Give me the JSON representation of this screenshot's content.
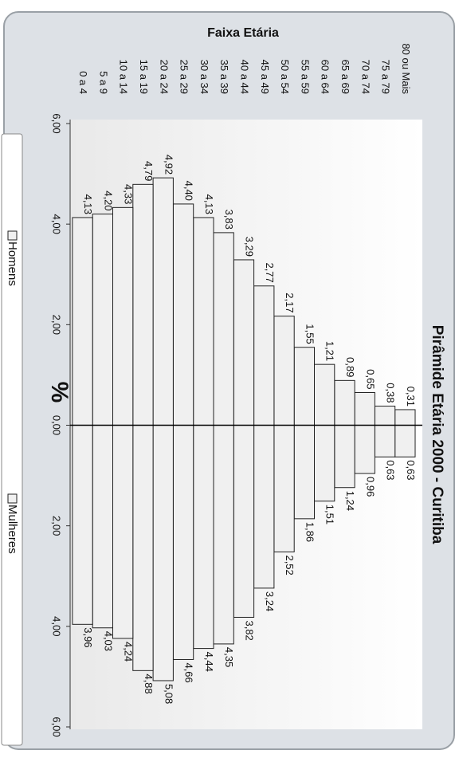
{
  "chart_data": {
    "type": "bar",
    "title": "Pirâmide Etária 2000 - Curitiba",
    "x_label": "%",
    "y_label": "Faixa Etária",
    "categories": [
      "80 ou Mais",
      "75 a 79",
      "70 a 74",
      "65 a 69",
      "60 a 64",
      "55 a 59",
      "50 a 54",
      "45 a 49",
      "40 a 44",
      "35 a 39",
      "30 a 34",
      "25 a 29",
      "20 a 24",
      "15 a 19",
      "10 a 14",
      "5 a 9",
      "0 a 4"
    ],
    "series": [
      {
        "name": "Homens",
        "color": "#f0f0f0",
        "values": [
          0.31,
          0.38,
          0.65,
          0.89,
          1.21,
          1.55,
          2.17,
          2.77,
          3.29,
          3.83,
          4.13,
          4.4,
          4.92,
          4.79,
          4.33,
          4.2,
          4.13
        ],
        "value_labels": [
          "0,31",
          "0,38",
          "0,65",
          "0,89",
          "1,21",
          "1,55",
          "2,17",
          "2,77",
          "3,29",
          "3,83",
          "4,13",
          "4,40",
          "4,92",
          "4,79",
          "4,33",
          "4,20",
          "4,13"
        ]
      },
      {
        "name": "Mulheres",
        "color": "#f0f0f0",
        "values": [
          0.63,
          0.63,
          0.96,
          1.24,
          1.51,
          1.86,
          2.52,
          3.24,
          3.82,
          4.35,
          4.44,
          4.66,
          5.08,
          4.88,
          4.24,
          4.03,
          3.96
        ],
        "value_labels": [
          "0,63",
          "0,63",
          "0,96",
          "1,24",
          "1,51",
          "1,86",
          "2,52",
          "3,24",
          "3,82",
          "4,35",
          "4,44",
          "4,66",
          "5,08",
          "4,88",
          "4,24",
          "4,03",
          "3,96"
        ]
      }
    ],
    "xlim": [
      -6,
      6
    ],
    "xticks": [
      {
        "value": -6,
        "label": "6,00"
      },
      {
        "value": -4,
        "label": "4,00"
      },
      {
        "value": -2,
        "label": "2,00"
      },
      {
        "value": 0,
        "label": "0,00"
      },
      {
        "value": 2,
        "label": "2,00"
      },
      {
        "value": 4,
        "label": "4,00"
      },
      {
        "value": 6,
        "label": "6,00"
      }
    ]
  }
}
